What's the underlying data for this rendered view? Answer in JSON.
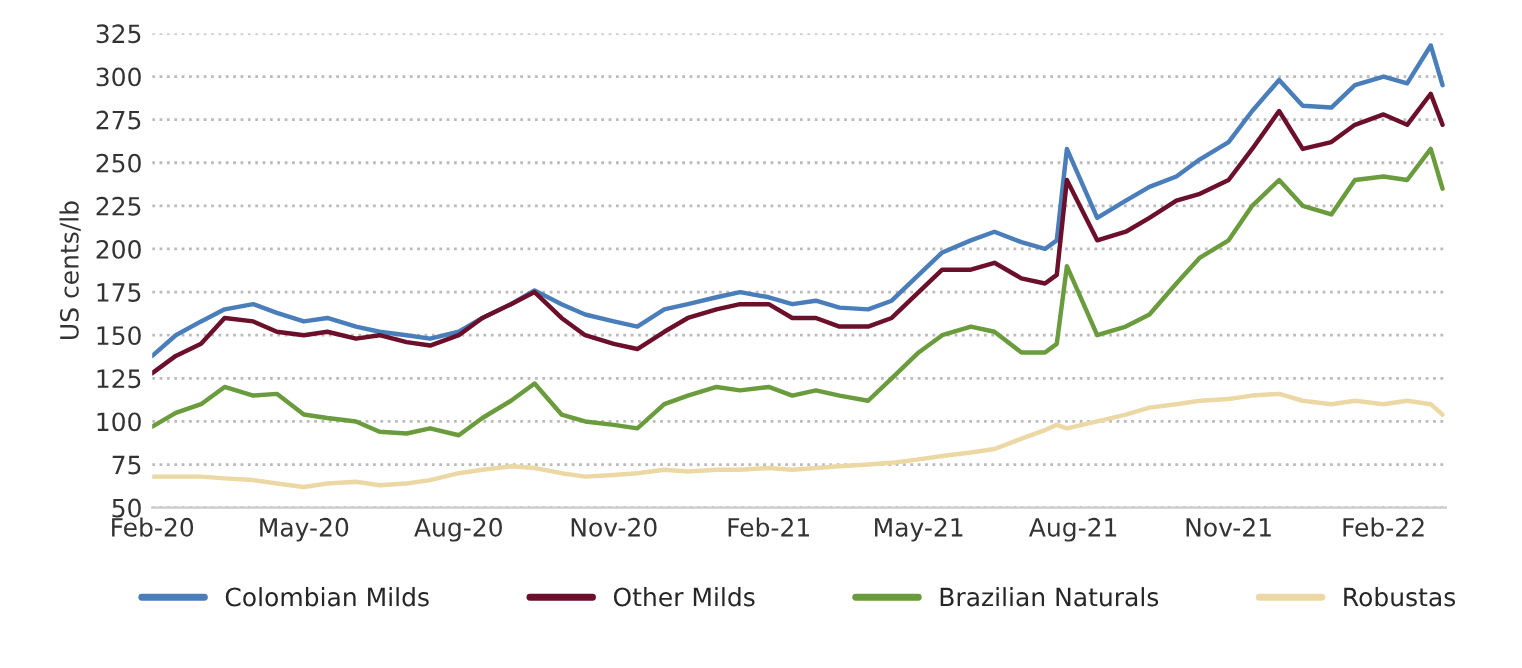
{
  "chart_data": {
    "type": "line",
    "ylabel": "US cents/lb",
    "x": [
      "2020-02-01",
      "2020-02-15",
      "2020-03-01",
      "2020-03-15",
      "2020-04-01",
      "2020-04-15",
      "2020-05-01",
      "2020-05-15",
      "2020-06-01",
      "2020-06-15",
      "2020-07-01",
      "2020-07-15",
      "2020-08-01",
      "2020-08-15",
      "2020-09-01",
      "2020-09-15",
      "2020-10-01",
      "2020-10-15",
      "2020-11-01",
      "2020-11-15",
      "2020-12-01",
      "2020-12-15",
      "2021-01-01",
      "2021-01-15",
      "2021-02-01",
      "2021-02-15",
      "2021-03-01",
      "2021-03-15",
      "2021-04-01",
      "2021-04-15",
      "2021-05-01",
      "2021-05-15",
      "2021-06-01",
      "2021-06-15",
      "2021-07-01",
      "2021-07-15",
      "2021-07-22",
      "2021-07-28",
      "2021-08-15",
      "2021-09-01",
      "2021-09-15",
      "2021-10-01",
      "2021-10-15",
      "2021-11-01",
      "2021-11-15",
      "2021-12-01",
      "2021-12-15",
      "2022-01-01",
      "2022-01-15",
      "2022-02-01",
      "2022-02-15",
      "2022-03-01",
      "2022-03-08"
    ],
    "series": [
      {
        "name": "Colombian Milds",
        "color": "#4a7ebb",
        "values": [
          138,
          150,
          158,
          165,
          168,
          163,
          158,
          160,
          155,
          152,
          150,
          148,
          152,
          160,
          168,
          176,
          168,
          162,
          158,
          155,
          165,
          168,
          172,
          175,
          172,
          168,
          170,
          166,
          165,
          170,
          185,
          198,
          205,
          210,
          204,
          200,
          205,
          258,
          218,
          228,
          236,
          242,
          252,
          262,
          280,
          298,
          283,
          282,
          295,
          300,
          296,
          318,
          295
        ]
      },
      {
        "name": "Other Milds",
        "color": "#6b0f2a",
        "values": [
          128,
          138,
          145,
          160,
          158,
          152,
          150,
          152,
          148,
          150,
          146,
          144,
          150,
          160,
          168,
          175,
          160,
          150,
          145,
          142,
          152,
          160,
          165,
          168,
          168,
          160,
          160,
          155,
          155,
          160,
          175,
          188,
          188,
          192,
          183,
          180,
          185,
          240,
          205,
          210,
          218,
          228,
          232,
          240,
          258,
          280,
          258,
          262,
          272,
          278,
          272,
          290,
          272
        ]
      },
      {
        "name": "Brazilian Naturals",
        "color": "#6a9c3d",
        "values": [
          97,
          105,
          110,
          120,
          115,
          116,
          104,
          102,
          100,
          94,
          93,
          96,
          92,
          102,
          112,
          122,
          104,
          100,
          98,
          96,
          110,
          115,
          120,
          118,
          120,
          115,
          118,
          115,
          112,
          125,
          140,
          150,
          155,
          152,
          140,
          140,
          145,
          190,
          150,
          155,
          162,
          180,
          195,
          205,
          225,
          240,
          225,
          220,
          240,
          242,
          240,
          258,
          235
        ]
      },
      {
        "name": "Robustas",
        "color": "#ecd8a4",
        "values": [
          68,
          68,
          68,
          67,
          66,
          64,
          62,
          64,
          65,
          63,
          64,
          66,
          70,
          72,
          74,
          73,
          70,
          68,
          69,
          70,
          72,
          71,
          72,
          72,
          73,
          72,
          73,
          74,
          75,
          76,
          78,
          80,
          82,
          84,
          90,
          95,
          98,
          96,
          100,
          104,
          108,
          110,
          112,
          113,
          115,
          116,
          112,
          110,
          112,
          110,
          112,
          110,
          104
        ]
      }
    ],
    "xlim": [
      "2020-02-01",
      "2022-03-10"
    ],
    "xticks": [
      {
        "value": "2020-02-01",
        "label": "Feb-20"
      },
      {
        "value": "2020-05-01",
        "label": "May-20"
      },
      {
        "value": "2020-08-01",
        "label": "Aug-20"
      },
      {
        "value": "2020-11-01",
        "label": "Nov-20"
      },
      {
        "value": "2021-02-01",
        "label": "Feb-21"
      },
      {
        "value": "2021-05-01",
        "label": "May-21"
      },
      {
        "value": "2021-08-01",
        "label": "Aug-21"
      },
      {
        "value": "2021-11-01",
        "label": "Nov-21"
      },
      {
        "value": "2022-02-01",
        "label": "Feb-22"
      }
    ],
    "ylim": [
      50,
      325
    ],
    "yticks": [
      50,
      75,
      100,
      125,
      150,
      175,
      200,
      225,
      250,
      275,
      300,
      325
    ],
    "grid": "y",
    "legend": "bottom",
    "line_style": "solid"
  }
}
